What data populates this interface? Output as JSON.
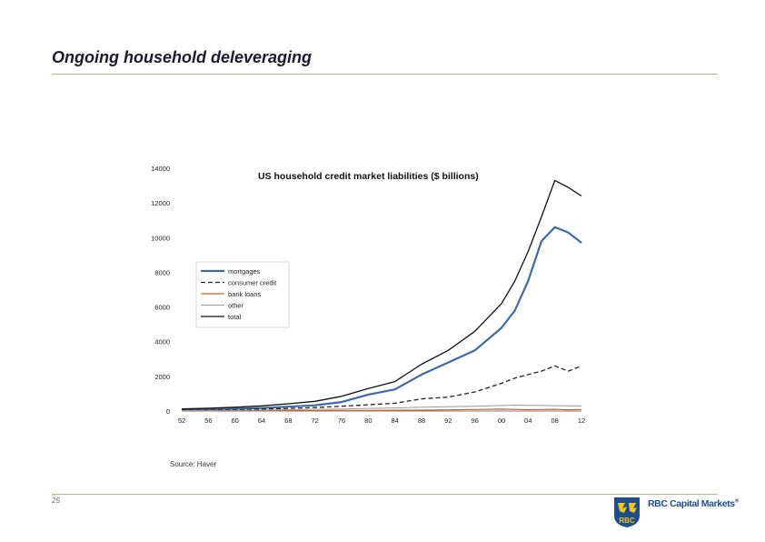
{
  "slide": {
    "title": "Ongoing household deleveraging",
    "source": "Source: Haver",
    "page_number": "25",
    "brand_name": "RBC Capital Markets",
    "brand_mark": "®",
    "logo_text": "RBC"
  },
  "colors": {
    "accent_rule": "#b9b38f",
    "logo_blue": "#1f4e8c",
    "logo_gold": "#f5c518"
  },
  "chart_data": {
    "type": "line",
    "title": "US household credit market liabilities ($ billions)",
    "xlabel": "",
    "ylabel": "",
    "xlim": [
      1952,
      2012
    ],
    "ylim": [
      0,
      14000
    ],
    "grid": false,
    "legend_placement": "middle-left",
    "x_ticks": [
      "52",
      "56",
      "60",
      "64",
      "68",
      "72",
      "76",
      "80",
      "84",
      "88",
      "92",
      "96",
      "00",
      "04",
      "08",
      "12"
    ],
    "y_ticks": [
      "0",
      "2000",
      "4000",
      "6000",
      "8000",
      "10000",
      "12000",
      "14000"
    ],
    "x": [
      1952,
      1956,
      1960,
      1964,
      1968,
      1972,
      1976,
      1980,
      1984,
      1988,
      1992,
      1996,
      2000,
      2002,
      2004,
      2006,
      2008,
      2010,
      2012
    ],
    "series": [
      {
        "name": "mortgages",
        "color": "#3e6aa8",
        "width": 2.2,
        "dash": "",
        "values": [
          60,
          100,
          130,
          180,
          250,
          330,
          520,
          950,
          1250,
          2100,
          2800,
          3500,
          4800,
          5800,
          7500,
          9800,
          10600,
          10300,
          9700
        ]
      },
      {
        "name": "consumer credit",
        "color": "#222222",
        "width": 1.3,
        "dash": "5,3",
        "values": [
          30,
          60,
          80,
          110,
          150,
          200,
          280,
          360,
          450,
          700,
          800,
          1100,
          1600,
          1900,
          2100,
          2300,
          2600,
          2300,
          2600
        ]
      },
      {
        "name": "bank loans",
        "color": "#c8662e",
        "width": 1.2,
        "dash": "",
        "values": [
          5,
          8,
          10,
          14,
          20,
          25,
          30,
          35,
          45,
          55,
          70,
          90,
          110,
          95,
          80,
          90,
          100,
          70,
          90
        ]
      },
      {
        "name": "other",
        "color": "#9a9a9a",
        "width": 1.0,
        "dash": "",
        "values": [
          20,
          30,
          40,
          60,
          80,
          100,
          120,
          150,
          180,
          220,
          250,
          280,
          320,
          340,
          330,
          320,
          310,
          300,
          300
        ]
      },
      {
        "name": "total",
        "color": "#111111",
        "width": 1.3,
        "dash": "",
        "values": [
          120,
          160,
          220,
          300,
          420,
          560,
          850,
          1300,
          1700,
          2700,
          3500,
          4600,
          6200,
          7500,
          9200,
          11200,
          13300,
          12900,
          12400
        ]
      }
    ]
  }
}
